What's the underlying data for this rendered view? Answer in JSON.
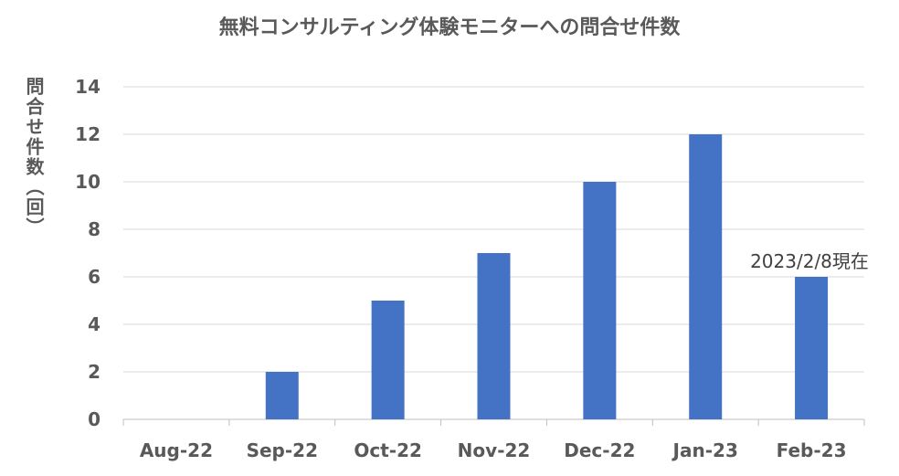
{
  "chart_data": {
    "type": "bar",
    "title": "無料コンサルティング体験モニターへの問合せ件数",
    "ylabel": "問合せ件数（回）",
    "xlabel": "",
    "categories": [
      "Aug-22",
      "Sep-22",
      "Oct-22",
      "Nov-22",
      "Dec-22",
      "Jan-23",
      "Feb-23"
    ],
    "series": [
      {
        "values": [
          0,
          2,
          5,
          7,
          10,
          12,
          6
        ]
      }
    ],
    "ylim": [
      0,
      14
    ],
    "yticks": [
      "0",
      "2",
      "4",
      "6",
      "8",
      "10",
      "12",
      "14"
    ],
    "grid": true,
    "legend": "none",
    "annotations": [
      {
        "text": "2023/2/8現在",
        "category": "Feb-23"
      }
    ],
    "bar_color": "#4472C4",
    "grid_color": "#d9d9d9"
  }
}
